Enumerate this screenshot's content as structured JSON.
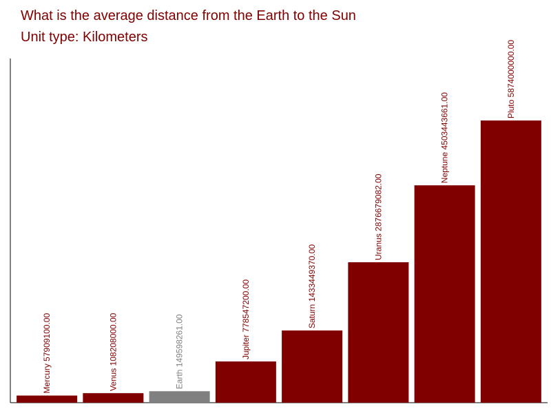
{
  "chart_data": {
    "type": "bar",
    "title": "What is the average distance from the Earth to the Sun",
    "subtitle": "Unit type: Kilometers",
    "categories": [
      "Mercury",
      "Venus",
      "Earth",
      "Jupiter",
      "Saturn",
      "Uranus",
      "Neptune",
      "Pluto"
    ],
    "values": [
      57909100,
      108208000,
      149598261,
      778547200,
      1433449370,
      2876679082,
      4503443661,
      5874000000
    ],
    "value_labels": [
      "57909100.00",
      "108208000.00",
      "149598261.00",
      "778547200.00",
      "1433449370.00",
      "2876679082.00",
      "4503443661.00",
      "5874000000.00"
    ],
    "colors": [
      "#800000",
      "#800000",
      "#808080",
      "#800000",
      "#800000",
      "#800000",
      "#800000",
      "#800000"
    ],
    "ylim": [
      -93000000,
      7185000000
    ]
  }
}
